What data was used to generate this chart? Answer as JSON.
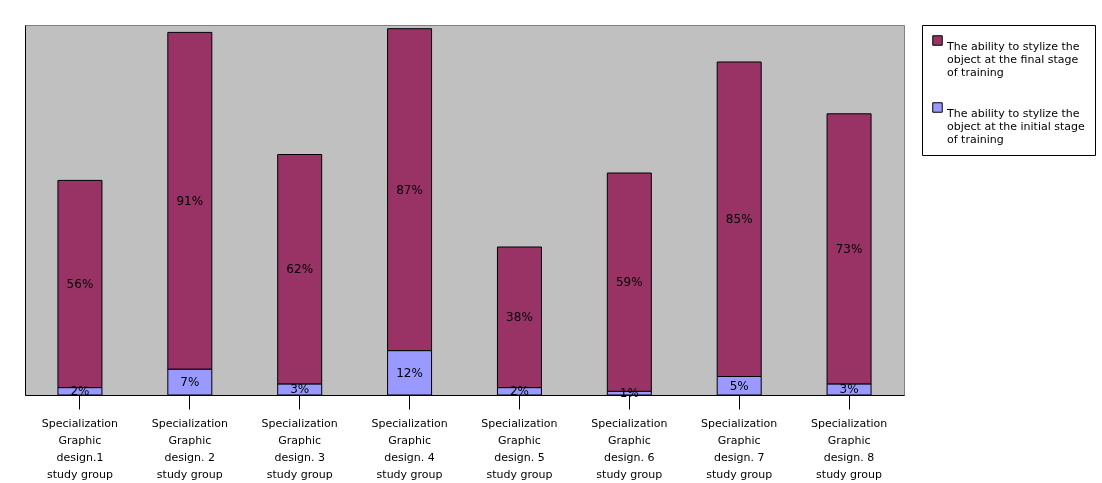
{
  "chart_data": {
    "type": "bar",
    "stacked": true,
    "categories": [
      "Specialization Graphic design.1 study group",
      "Specialization Graphic design. 2 study group",
      "Specialization Graphic design. 3 study group",
      "Specialization Graphic design. 4 study group",
      "Specialization Graphic design. 5 study group",
      "Specialization Graphic design. 6 study group",
      "Specialization Graphic design. 7 study group",
      "Specialization Graphic design. 8 study group"
    ],
    "series": [
      {
        "name": "The ability to stylize the object at the initial stage of training",
        "color": "#9999ff",
        "values": [
          2,
          7,
          3,
          12,
          2,
          1,
          5,
          3
        ],
        "value_labels": [
          "2%",
          "7%",
          "3%",
          "12%",
          "2%",
          "1%",
          "5%",
          "3%"
        ]
      },
      {
        "name": "The ability to stylize the object at the final stage of training",
        "color": "#993366",
        "values": [
          56,
          91,
          62,
          87,
          38,
          59,
          85,
          73
        ],
        "value_labels": [
          "56%",
          "91%",
          "62%",
          "87%",
          "38%",
          "59%",
          "85%",
          "73%"
        ]
      }
    ],
    "legend": "right",
    "tick_labels": "x",
    "grid": false
  }
}
